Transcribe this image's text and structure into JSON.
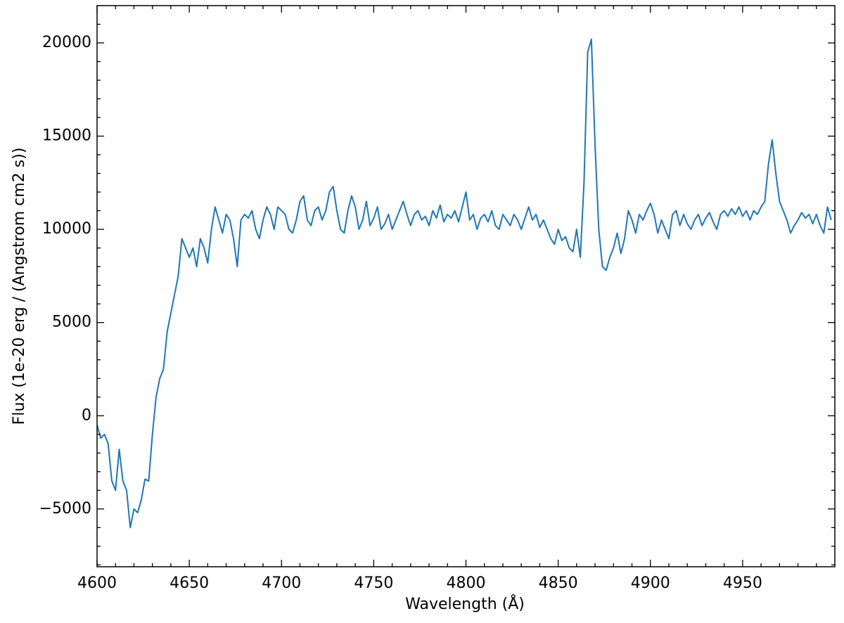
{
  "chart_data": {
    "type": "line",
    "xlabel": "Wavelength (Å)",
    "ylabel": "Flux (1e-20 erg / (Angstrom cm2 s))",
    "xlim": [
      4600,
      5000
    ],
    "ylim": [
      -8100,
      22000
    ],
    "xticks": [
      4600,
      4650,
      4700,
      4750,
      4800,
      4850,
      4900,
      4950
    ],
    "yticks": [
      {
        "value": -5000,
        "label": "−5000"
      },
      0,
      5000,
      10000,
      15000,
      20000
    ],
    "xminorticks": [
      4610,
      4620,
      4630,
      4640,
      4660,
      4670,
      4680,
      4690,
      4710,
      4720,
      4730,
      4740,
      4760,
      4770,
      4780,
      4790,
      4810,
      4820,
      4830,
      4840,
      4860,
      4870,
      4880,
      4890,
      4910,
      4920,
      4930,
      4940,
      4960,
      4970,
      4980,
      4990
    ],
    "yminorticks": [
      -8000,
      -7000,
      -6000,
      -4000,
      -3000,
      -2000,
      -1000,
      1000,
      2000,
      3000,
      4000,
      6000,
      7000,
      8000,
      9000,
      11000,
      12000,
      13000,
      14000,
      16000,
      17000,
      18000,
      19000,
      21000
    ],
    "grid": false,
    "x": [
      4600,
      4602,
      4604,
      4606,
      4608,
      4610,
      4612,
      4614,
      4616,
      4618,
      4620,
      4622,
      4624,
      4626,
      4628,
      4630,
      4632,
      4634,
      4636,
      4638,
      4640,
      4642,
      4644,
      4646,
      4648,
      4650,
      4652,
      4654,
      4656,
      4658,
      4660,
      4662,
      4664,
      4666,
      4668,
      4670,
      4672,
      4674,
      4676,
      4678,
      4680,
      4682,
      4684,
      4686,
      4688,
      4690,
      4692,
      4694,
      4696,
      4698,
      4700,
      4702,
      4704,
      4706,
      4708,
      4710,
      4712,
      4714,
      4716,
      4718,
      4720,
      4722,
      4724,
      4726,
      4728,
      4730,
      4732,
      4734,
      4736,
      4738,
      4740,
      4742,
      4744,
      4746,
      4748,
      4750,
      4752,
      4754,
      4756,
      4758,
      4760,
      4762,
      4764,
      4766,
      4768,
      4770,
      4772,
      4774,
      4776,
      4778,
      4780,
      4782,
      4784,
      4786,
      4788,
      4790,
      4792,
      4794,
      4796,
      4798,
      4800,
      4802,
      4804,
      4806,
      4808,
      4810,
      4812,
      4814,
      4816,
      4818,
      4820,
      4822,
      4824,
      4826,
      4828,
      4830,
      4832,
      4834,
      4836,
      4838,
      4840,
      4842,
      4844,
      4846,
      4848,
      4850,
      4852,
      4854,
      4856,
      4858,
      4860,
      4862,
      4864,
      4866,
      4868,
      4870,
      4872,
      4874,
      4876,
      4878,
      4880,
      4882,
      4884,
      4886,
      4888,
      4890,
      4892,
      4894,
      4896,
      4898,
      4900,
      4902,
      4904,
      4906,
      4908,
      4910,
      4912,
      4914,
      4916,
      4918,
      4920,
      4922,
      4924,
      4926,
      4928,
      4930,
      4932,
      4934,
      4936,
      4938,
      4940,
      4942,
      4944,
      4946,
      4948,
      4950,
      4952,
      4954,
      4956,
      4958,
      4960,
      4962,
      4964,
      4966,
      4968,
      4970,
      4972,
      4974,
      4976,
      4978,
      4980,
      4982,
      4984,
      4986,
      4988,
      4990,
      4992,
      4994,
      4996,
      4998
    ],
    "series": [
      {
        "color": "#1f77b4",
        "values": [
          -500,
          -1200,
          -1000,
          -1500,
          -3500,
          -4000,
          -1800,
          -3500,
          -4000,
          -6000,
          -5000,
          -5200,
          -4500,
          -3400,
          -3500,
          -1000,
          1000,
          2000,
          2500,
          4500,
          5500,
          6500,
          7500,
          9500,
          9000,
          8500,
          9000,
          8000,
          9500,
          9000,
          8200,
          10000,
          11200,
          10500,
          9800,
          10800,
          10500,
          9500,
          8000,
          10500,
          10800,
          10600,
          11000,
          10000,
          9500,
          10500,
          11200,
          10800,
          10000,
          11200,
          11000,
          10800,
          10000,
          9800,
          10500,
          11500,
          11800,
          10500,
          10200,
          11000,
          11200,
          10500,
          11000,
          12000,
          12300,
          11000,
          10000,
          9800,
          11000,
          11800,
          11200,
          10000,
          10500,
          11500,
          10200,
          10600,
          11200,
          10000,
          10300,
          10800,
          10000,
          10500,
          11000,
          11500,
          10800,
          10200,
          10800,
          11000,
          10500,
          10700,
          10200,
          11000,
          10600,
          11300,
          10400,
          10800,
          10600,
          11000,
          10400,
          11200,
          12000,
          10500,
          10800,
          10000,
          10600,
          10800,
          10400,
          11000,
          10200,
          10000,
          10800,
          10500,
          10200,
          10800,
          10500,
          10000,
          10600,
          11200,
          10500,
          10800,
          10100,
          10500,
          10000,
          9500,
          9200,
          10000,
          9400,
          9600,
          9000,
          8800,
          10000,
          8500,
          12500,
          19500,
          20200,
          14500,
          10000,
          8000,
          7800,
          8500,
          9000,
          9800,
          8700,
          9500,
          11000,
          10500,
          9800,
          10800,
          10500,
          11000,
          11400,
          10800,
          9800,
          10500,
          10000,
          9500,
          10800,
          11000,
          10200,
          10800,
          10300,
          10000,
          10500,
          10800,
          10200,
          10600,
          10900,
          10400,
          10000,
          10800,
          11000,
          10700,
          11100,
          10800,
          11200,
          10700,
          11000,
          10500,
          11000,
          10800,
          11200,
          11500,
          13500,
          14800,
          13000,
          11500,
          11000,
          10500,
          9800,
          10200,
          10500,
          10900,
          10600,
          10800,
          10300,
          10800,
          10200,
          9800,
          11200,
          10500
        ]
      }
    ]
  }
}
